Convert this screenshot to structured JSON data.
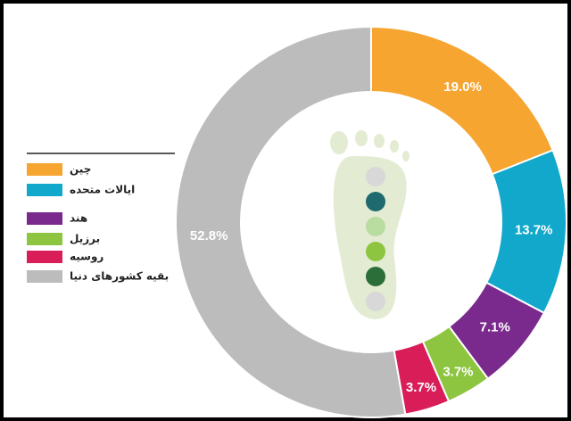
{
  "chart_data": {
    "type": "pie",
    "categories": [
      "چین",
      "ایالات متحده",
      "هند",
      "برزیل",
      "روسیه",
      "بقیه کشورهای دنیا"
    ],
    "values": [
      19.0,
      13.7,
      7.1,
      3.7,
      3.7,
      52.8
    ],
    "value_labels": [
      "19.0%",
      "13.7%",
      "7.1%",
      "3.7%",
      "3.7%",
      "52.8%"
    ],
    "colors": [
      "#f6a531",
      "#12a8cb",
      "#7a2a8c",
      "#8dc540",
      "#d81d58",
      "#bdbcbc"
    ]
  }
}
